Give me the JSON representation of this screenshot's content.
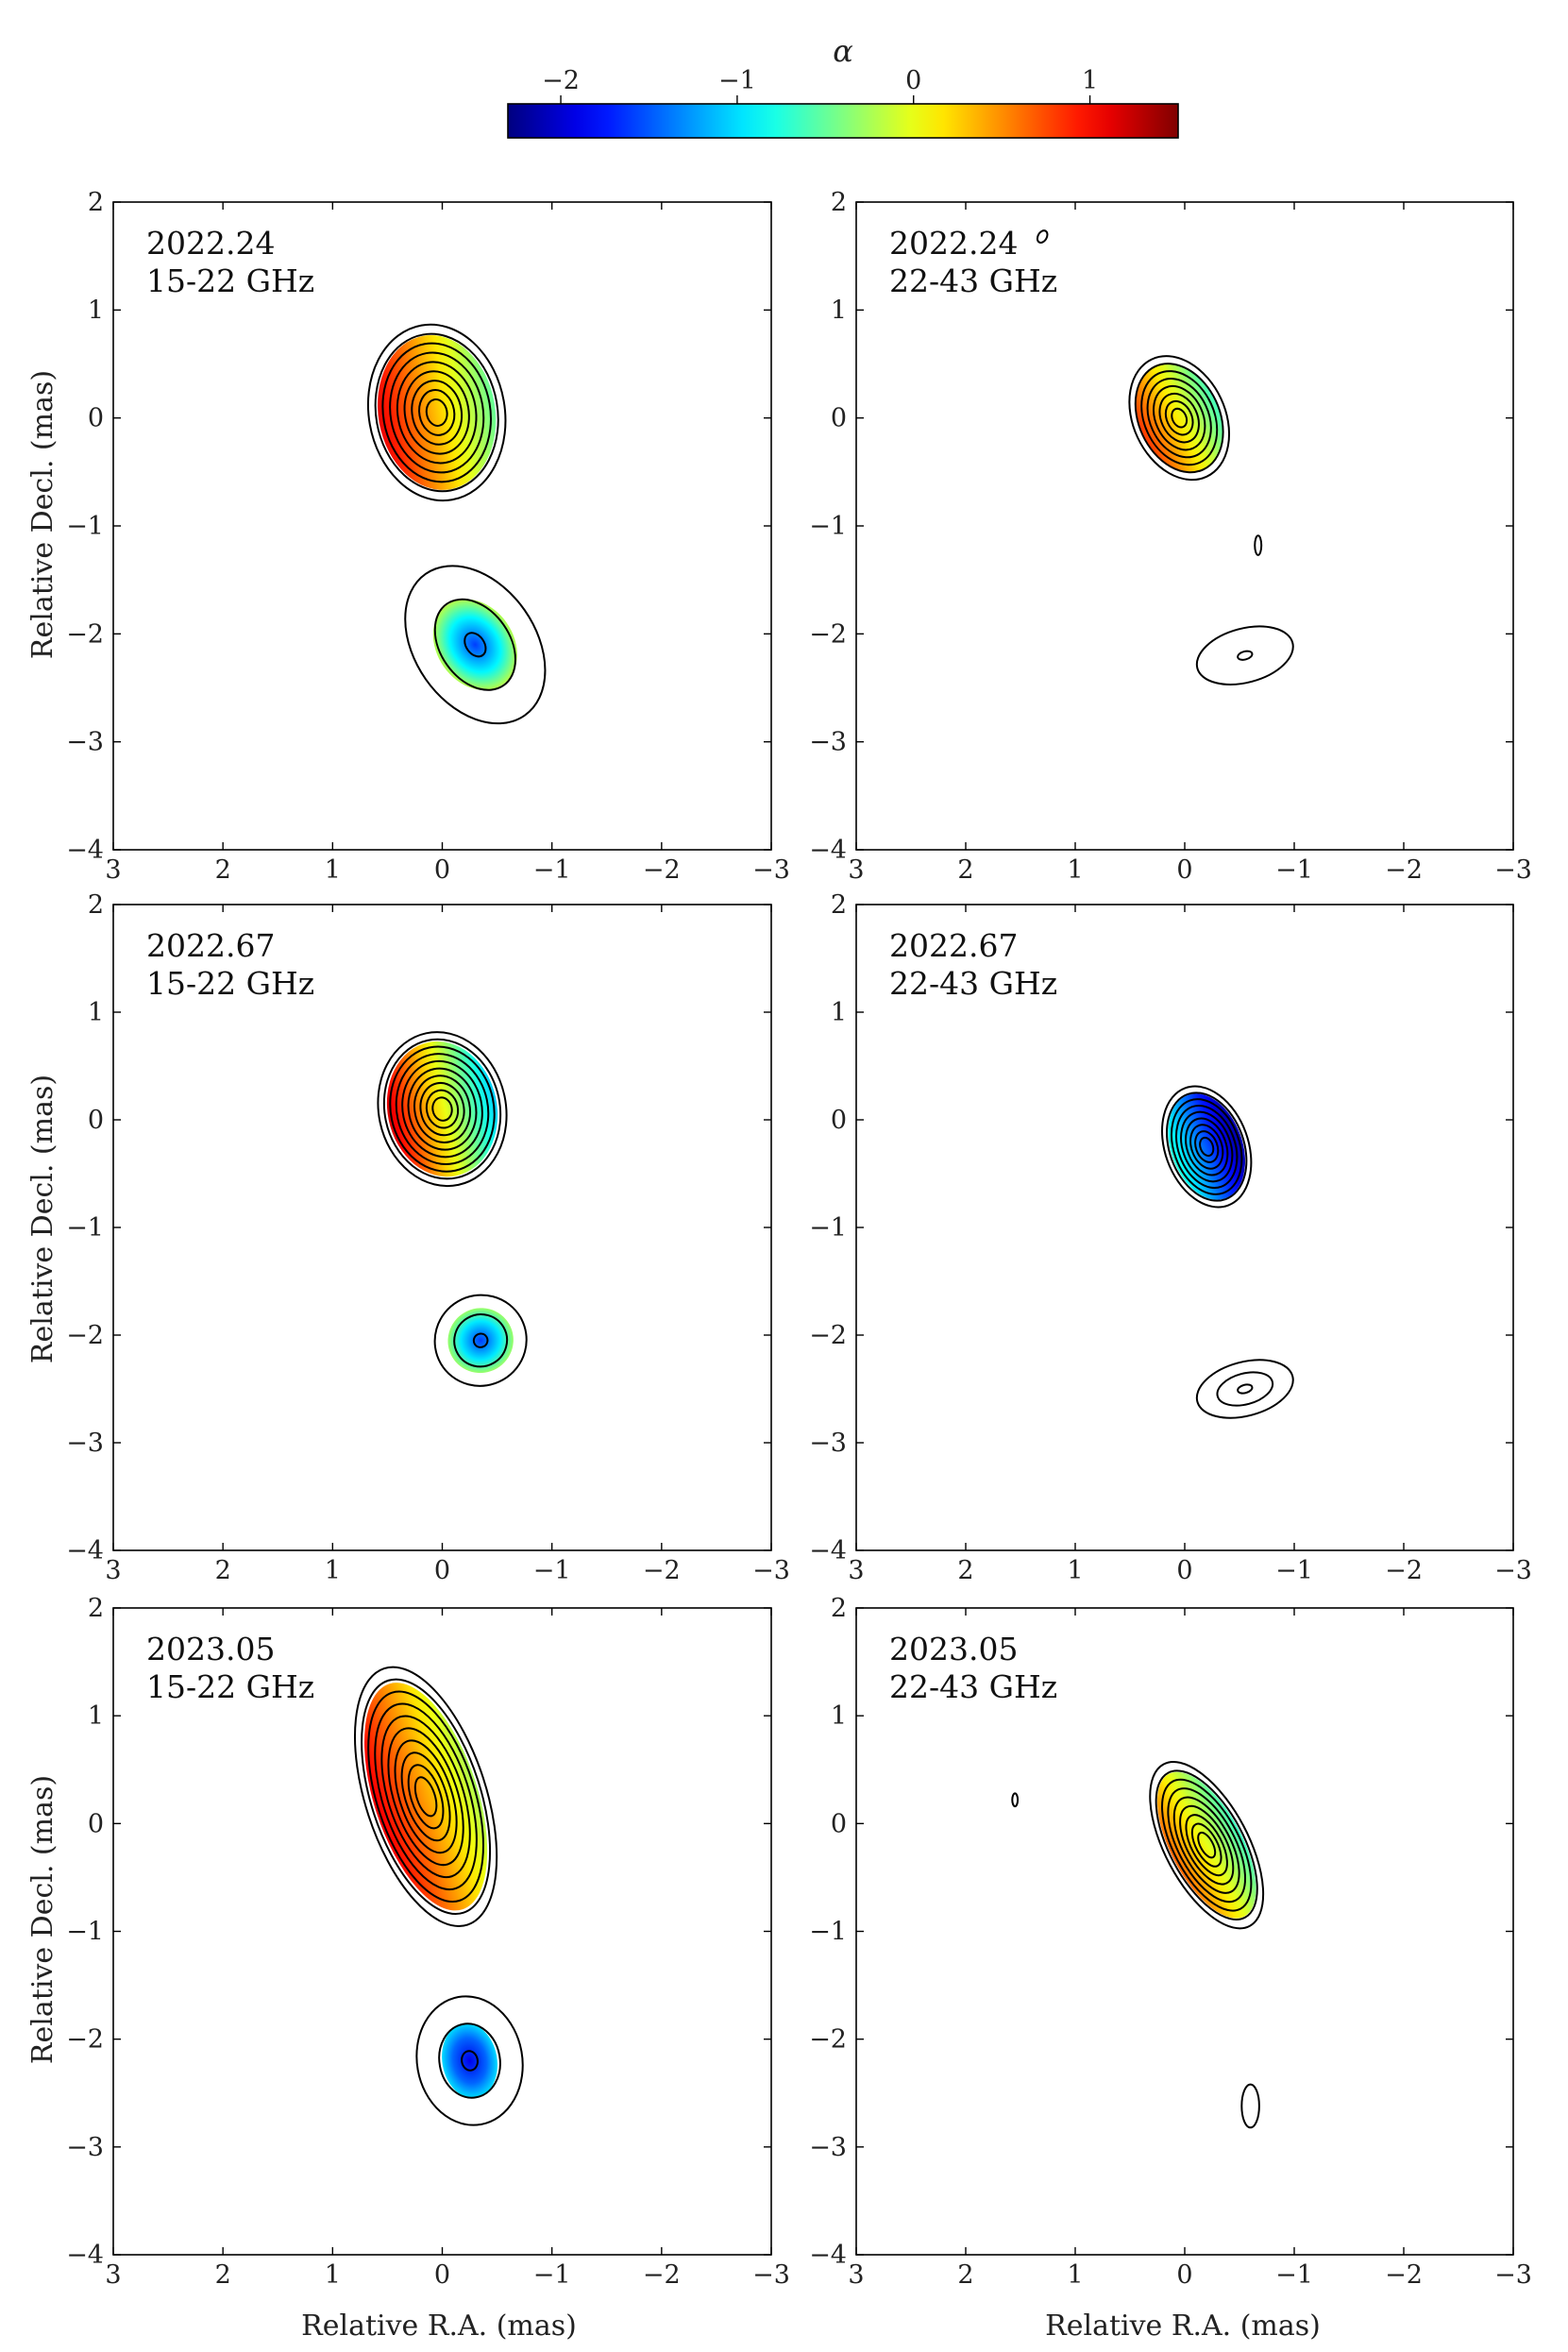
{
  "colorbar": {
    "label": "α",
    "range": [
      -2.3,
      1.5
    ],
    "ticks": [
      {
        "v": -2,
        "label": "−2"
      },
      {
        "v": -1,
        "label": "−1"
      },
      {
        "v": 0,
        "label": "0"
      },
      {
        "v": 1,
        "label": "1"
      }
    ],
    "colormap": "jet"
  },
  "axes": {
    "xlabel": "Relative R.A. (mas)",
    "ylabel": "Relative Decl. (mas)",
    "xlim": [
      3,
      -3
    ],
    "ylim": [
      -4,
      2
    ],
    "xticks": [
      {
        "v": 3,
        "label": "3"
      },
      {
        "v": 2,
        "label": "2"
      },
      {
        "v": 1,
        "label": "1"
      },
      {
        "v": 0,
        "label": "0"
      },
      {
        "v": -1,
        "label": "−1"
      },
      {
        "v": -2,
        "label": "−2"
      },
      {
        "v": -3,
        "label": "−3"
      }
    ],
    "yticks": [
      {
        "v": 2,
        "label": "2"
      },
      {
        "v": 1,
        "label": "1"
      },
      {
        "v": 0,
        "label": "0"
      },
      {
        "v": -1,
        "label": "−1"
      },
      {
        "v": -2,
        "label": "−2"
      },
      {
        "v": -3,
        "label": "−3"
      },
      {
        "v": -4,
        "label": "−4"
      }
    ]
  },
  "chart_data": [
    {
      "type": "heatmap",
      "epoch": "2022.24",
      "band": "15-22 GHz",
      "components": [
        {
          "ra": 0.05,
          "dec": 0.05,
          "rx": 0.62,
          "ry": 0.82,
          "rot": -10,
          "levels": 9,
          "alpha": {
            "ra0": 0.72,
            "a0": 1.3,
            "ra1": -0.55,
            "a1": -0.6
          }
        },
        {
          "ra": -0.3,
          "dec": -2.1,
          "rx": 0.55,
          "ry": 0.8,
          "rot": -35,
          "levels": 3,
          "alpha_patch": {
            "rx": 0.35,
            "ry": 0.45,
            "a0": -0.2,
            "a1": -1.6
          }
        }
      ]
    },
    {
      "type": "heatmap",
      "epoch": "2022.24",
      "band": "22-43 GHz",
      "components": [
        {
          "ra": 0.05,
          "dec": 0.0,
          "rx": 0.42,
          "ry": 0.6,
          "rot": -25,
          "levels": 8,
          "alpha": {
            "ra0": 0.55,
            "a0": 1.1,
            "ra1": -0.4,
            "a1": -0.8
          }
        },
        {
          "ra": -0.55,
          "dec": -2.2,
          "rx": 0.45,
          "ry": 0.25,
          "rot": -15,
          "levels": 2
        },
        {
          "ra": 1.3,
          "dec": 1.68,
          "rx": 0.04,
          "ry": 0.06,
          "rot": 30,
          "levels": 1
        },
        {
          "ra": -0.67,
          "dec": -1.18,
          "rx": 0.03,
          "ry": 0.09,
          "rot": 0,
          "levels": 1
        }
      ]
    },
    {
      "type": "heatmap",
      "epoch": "2022.67",
      "band": "15-22 GHz",
      "components": [
        {
          "ra": 0.0,
          "dec": 0.1,
          "rx": 0.58,
          "ry": 0.72,
          "rot": -12,
          "levels": 10,
          "alpha": {
            "ra0": 0.55,
            "a0": 1.3,
            "ra1": -0.6,
            "a1": -1.3
          }
        },
        {
          "ra": -0.35,
          "dec": -2.05,
          "rx": 0.42,
          "ry": 0.42,
          "rot": -30,
          "levels": 3,
          "alpha_patch": {
            "rx": 0.3,
            "ry": 0.3,
            "a0": -0.3,
            "a1": -1.6
          }
        }
      ]
    },
    {
      "type": "heatmap",
      "epoch": "2022.67",
      "band": "22-43 GHz",
      "components": [
        {
          "ra": -0.2,
          "dec": -0.25,
          "rx": 0.38,
          "ry": 0.58,
          "rot": -20,
          "levels": 9,
          "alpha": {
            "ra0": 0.3,
            "a0": -0.3,
            "ra1": -0.45,
            "a1": -2.1
          }
        },
        {
          "ra": -0.55,
          "dec": -2.5,
          "rx": 0.45,
          "ry": 0.25,
          "rot": -15,
          "levels": 3
        }
      ]
    },
    {
      "type": "heatmap",
      "epoch": "2023.05",
      "band": "15-22 GHz",
      "components": [
        {
          "ra": 0.15,
          "dec": 0.25,
          "rx": 0.55,
          "ry": 1.25,
          "rot": -18,
          "levels": 10,
          "alpha": {
            "ra0": 0.7,
            "a0": 1.2,
            "ra1": -0.5,
            "a1": -0.5
          }
        },
        {
          "ra": -0.25,
          "dec": -2.2,
          "rx": 0.48,
          "ry": 0.6,
          "rot": -10,
          "levels": 3,
          "alpha_patch": {
            "rx": 0.25,
            "ry": 0.35,
            "a0": -1.0,
            "a1": -1.9
          }
        }
      ]
    },
    {
      "type": "heatmap",
      "epoch": "2023.05",
      "band": "22-43 GHz",
      "components": [
        {
          "ra": -0.2,
          "dec": -0.2,
          "rx": 0.38,
          "ry": 0.85,
          "rot": -28,
          "levels": 9,
          "alpha": {
            "ra0": 0.3,
            "a0": 1.0,
            "ra1": -0.55,
            "a1": -0.7
          }
        },
        {
          "ra": -0.6,
          "dec": -2.62,
          "rx": 0.08,
          "ry": 0.2,
          "rot": 0,
          "levels": 1
        },
        {
          "ra": 1.55,
          "dec": 0.22,
          "rx": 0.025,
          "ry": 0.06,
          "rot": 0,
          "levels": 1
        }
      ]
    }
  ]
}
